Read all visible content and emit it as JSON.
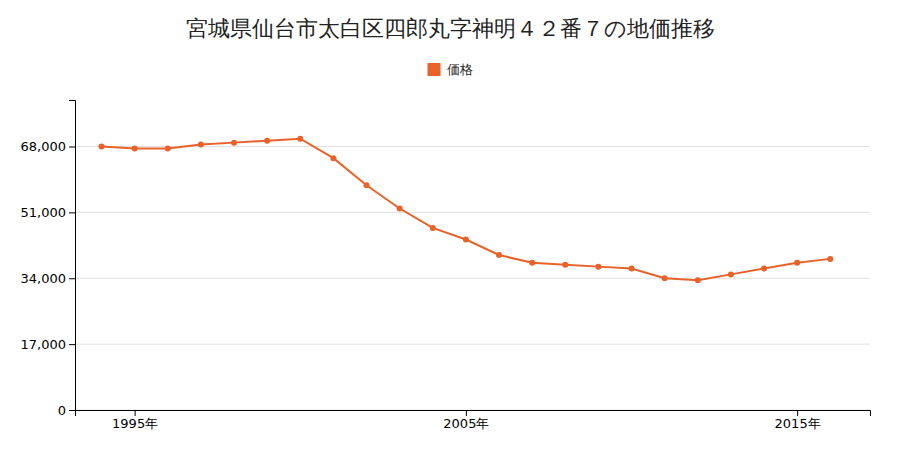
{
  "chart_data": {
    "type": "line",
    "title": "宮城県仙台市太白区四郎丸字神明４２番７の地価推移",
    "x": [
      1994,
      1995,
      1996,
      1997,
      1998,
      1999,
      2000,
      2001,
      2002,
      2003,
      2004,
      2005,
      2006,
      2007,
      2008,
      2009,
      2010,
      2011,
      2012,
      2013,
      2014,
      2015,
      2016
    ],
    "series": [
      {
        "name": "価格",
        "color": "#e8622a",
        "marker": "circle",
        "values": [
          68000,
          67500,
          67500,
          68500,
          69000,
          69500,
          70000,
          65000,
          58000,
          52000,
          47000,
          44000,
          40000,
          38000,
          37500,
          37000,
          36500,
          34000,
          33500,
          35000,
          36500,
          38000,
          39000
        ]
      }
    ],
    "xlim": [
      1993.2,
      2017.2
    ],
    "xticks": [
      {
        "value": 1995,
        "label": "1995年"
      },
      {
        "value": 2005,
        "label": "2005年"
      },
      {
        "value": 2015,
        "label": "2015年"
      }
    ],
    "ylim": [
      0,
      80000
    ],
    "yticks": [
      0,
      {
        "value": 17000,
        "label": "17,000"
      },
      {
        "value": 34000,
        "label": "34,000"
      },
      {
        "value": 51000,
        "label": "51,000"
      },
      {
        "value": 68000,
        "label": "68,000"
      }
    ],
    "grid": true,
    "legend": "top"
  }
}
